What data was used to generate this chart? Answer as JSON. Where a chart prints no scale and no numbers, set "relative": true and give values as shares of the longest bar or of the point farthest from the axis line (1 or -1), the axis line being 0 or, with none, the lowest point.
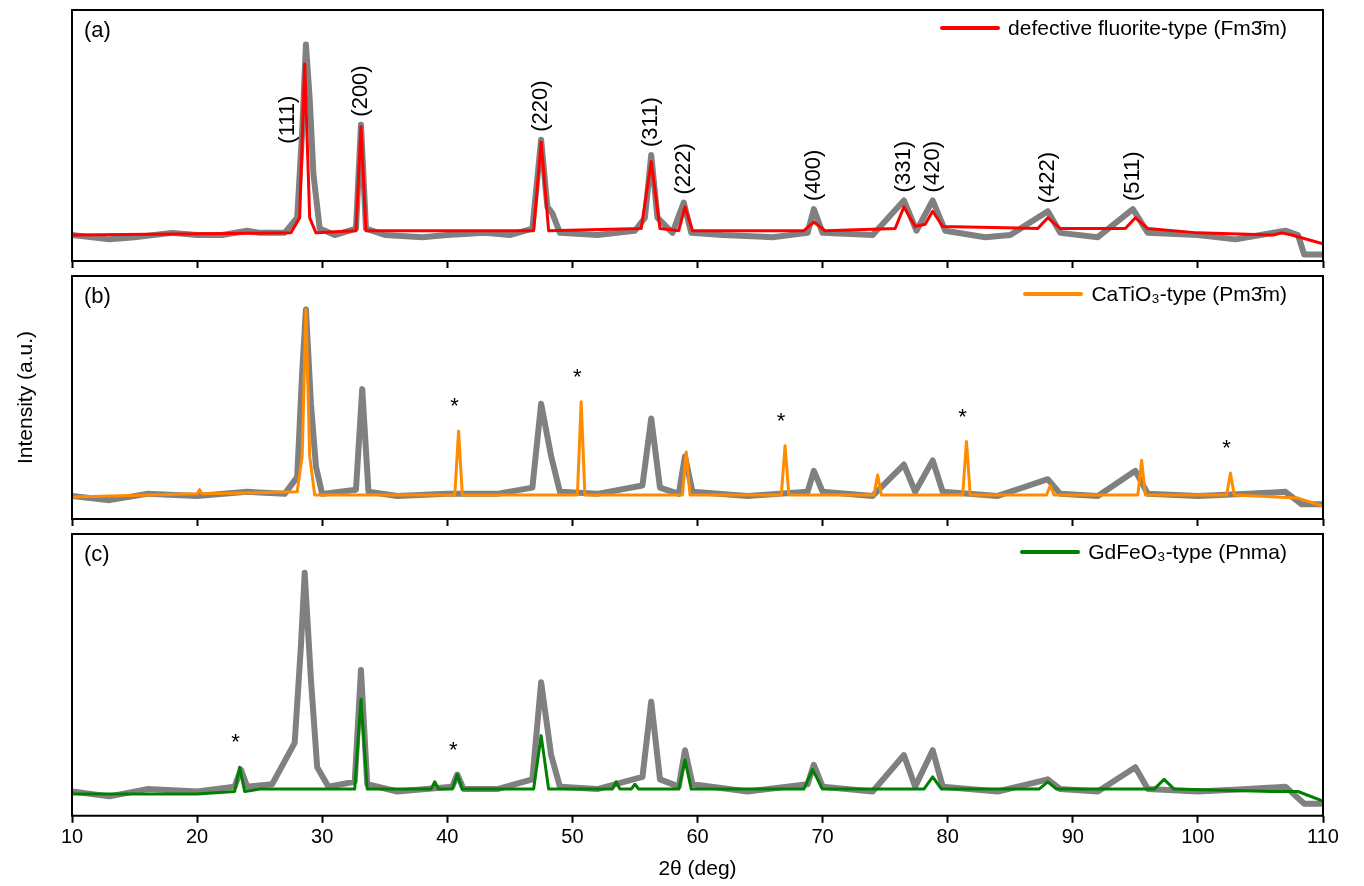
{
  "chart_data": [
    {
      "type": "line",
      "relative": true,
      "xlim": [
        10,
        110
      ],
      "xticks": [
        10,
        20,
        30,
        40,
        50,
        60,
        70,
        80,
        90,
        100,
        110
      ],
      "tick_labels": false,
      "legend": "top right",
      "marker": "none",
      "annotations": [
        "(a)",
        {
          "text": "(111)",
          "x": 28.7,
          "y": 1.0
        },
        {
          "text": "(200)",
          "x": 33.1,
          "y": 0.63
        },
        {
          "text": "(220)",
          "x": 47.5,
          "y": 0.56
        },
        {
          "text": "(311)",
          "x": 56.3,
          "y": 0.49
        },
        {
          "text": "(222)",
          "x": 58.9,
          "y": 0.27
        },
        {
          "text": "(400)",
          "x": 69.3,
          "y": 0.24
        },
        {
          "text": "(331)",
          "x": 76.5,
          "y": 0.28
        },
        {
          "text": "(420)",
          "x": 78.8,
          "y": 0.28
        },
        {
          "text": "(422)",
          "x": 88,
          "y": 0.23
        },
        {
          "text": "(511)",
          "x": 94.8,
          "y": 0.24
        }
      ],
      "series": [
        {
          "color": "#808080",
          "x": [
            10,
            13,
            15,
            18,
            20,
            22,
            24,
            25,
            27,
            28.0,
            28.4,
            28.7,
            29.0,
            29.3,
            29.8,
            31,
            32.7,
            33.1,
            33.5,
            35,
            38,
            40,
            43,
            45,
            46.8,
            47.5,
            48.0,
            48.4,
            49.0,
            52,
            55,
            55.8,
            56.3,
            56.8,
            58,
            58.9,
            59.5,
            62,
            66,
            68.8,
            69.3,
            70,
            74,
            76.5,
            77.5,
            78.8,
            79.8,
            83,
            85,
            88,
            89,
            92,
            94.8,
            96,
            100,
            103,
            105,
            107,
            108,
            108.5,
            110
          ],
          "values": [
            0.12,
            0.1,
            0.11,
            0.13,
            0.12,
            0.12,
            0.14,
            0.13,
            0.13,
            0.2,
            0.6,
            1.0,
            0.75,
            0.4,
            0.15,
            0.12,
            0.15,
            0.63,
            0.15,
            0.12,
            0.11,
            0.12,
            0.13,
            0.12,
            0.15,
            0.56,
            0.25,
            0.22,
            0.13,
            0.12,
            0.14,
            0.2,
            0.49,
            0.2,
            0.13,
            0.27,
            0.13,
            0.12,
            0.11,
            0.13,
            0.24,
            0.13,
            0.12,
            0.28,
            0.14,
            0.28,
            0.14,
            0.11,
            0.12,
            0.23,
            0.13,
            0.11,
            0.24,
            0.13,
            0.12,
            0.1,
            0.12,
            0.14,
            0.12,
            0.03,
            0.03
          ]
        },
        {
          "name": "defective fluorite-type (Fm3̄m)",
          "color": "#ff0000",
          "x": [
            10,
            27.5,
            28.2,
            28.6,
            29.0,
            29.5,
            32.7,
            33.1,
            33.5,
            46.9,
            47.5,
            48.1,
            55.5,
            56.3,
            57.0,
            58.5,
            59.0,
            59.6,
            68.5,
            69.3,
            70.2,
            75.8,
            76.5,
            77.4,
            78.2,
            78.8,
            79.6,
            87.2,
            88.0,
            89,
            94.2,
            95.0,
            96,
            100,
            106,
            106.7,
            107.5,
            110
          ],
          "values": [
            0.12,
            0.13,
            0.2,
            0.91,
            0.2,
            0.13,
            0.14,
            0.62,
            0.14,
            0.14,
            0.55,
            0.14,
            0.15,
            0.46,
            0.15,
            0.14,
            0.25,
            0.14,
            0.14,
            0.18,
            0.14,
            0.15,
            0.25,
            0.16,
            0.17,
            0.23,
            0.16,
            0.15,
            0.2,
            0.15,
            0.15,
            0.2,
            0.15,
            0.13,
            0.12,
            0.13,
            0.12,
            0.08
          ]
        }
      ]
    },
    {
      "type": "line",
      "relative": true,
      "xlim": [
        10,
        110
      ],
      "xticks": [
        10,
        20,
        30,
        40,
        50,
        60,
        70,
        80,
        90,
        100,
        110
      ],
      "tick_labels": false,
      "legend": "top right",
      "marker": "none",
      "ylabel": "Intensity (a.u.)",
      "annotations": [
        "(b)",
        {
          "text": "*",
          "x": 40.9,
          "y": 0.42
        },
        {
          "text": "*",
          "x": 50.7,
          "y": 0.56
        },
        {
          "text": "*",
          "x": 67,
          "y": 0.35
        },
        {
          "text": "*",
          "x": 81.5,
          "y": 0.37
        },
        {
          "text": "*",
          "x": 102.6,
          "y": 0.22
        }
      ],
      "series": [
        {
          "color": "#808080",
          "x": [
            10,
            13,
            16,
            20,
            24,
            27,
            28.0,
            28.4,
            28.7,
            29.1,
            29.5,
            30,
            32.7,
            33.2,
            33.7,
            36,
            40,
            44,
            46.8,
            47.5,
            48.3,
            49,
            52,
            55.6,
            56.3,
            57,
            58.5,
            59.0,
            59.6,
            64,
            68.8,
            69.3,
            70,
            74,
            76.5,
            77.4,
            78.8,
            79.6,
            84,
            88,
            89,
            92,
            95,
            96,
            100,
            104,
            107,
            108.3,
            110
          ],
          "values": [
            0.11,
            0.09,
            0.12,
            0.11,
            0.13,
            0.12,
            0.2,
            0.7,
            1.0,
            0.55,
            0.25,
            0.12,
            0.14,
            0.62,
            0.13,
            0.11,
            0.12,
            0.12,
            0.15,
            0.55,
            0.3,
            0.13,
            0.12,
            0.16,
            0.48,
            0.15,
            0.12,
            0.3,
            0.13,
            0.11,
            0.13,
            0.23,
            0.13,
            0.11,
            0.26,
            0.13,
            0.28,
            0.13,
            0.11,
            0.19,
            0.12,
            0.11,
            0.23,
            0.12,
            0.11,
            0.12,
            0.13,
            0.07,
            0.07
          ]
        },
        {
          "name": "CaTiO₃-type (Pm3̄m)",
          "color": "#ff8c00",
          "x": [
            10,
            20,
            20.2,
            20.4,
            28,
            28.4,
            28.7,
            29.0,
            29.4,
            40.6,
            40.9,
            41.2,
            50.4,
            50.7,
            51.0,
            58.8,
            59.1,
            59.4,
            66.7,
            67,
            67.3,
            74.1,
            74.4,
            74.7,
            81.2,
            81.5,
            81.8,
            87.9,
            88.2,
            88.5,
            95.2,
            95.5,
            95.8,
            102.3,
            102.6,
            102.9,
            108,
            110
          ],
          "values": [
            0.105,
            0.12,
            0.14,
            0.12,
            0.13,
            0.3,
            1.0,
            0.3,
            0.115,
            0.115,
            0.42,
            0.115,
            0.115,
            0.56,
            0.115,
            0.115,
            0.32,
            0.115,
            0.115,
            0.35,
            0.115,
            0.115,
            0.21,
            0.115,
            0.115,
            0.37,
            0.115,
            0.115,
            0.16,
            0.115,
            0.115,
            0.28,
            0.115,
            0.115,
            0.22,
            0.115,
            0.1,
            0.06
          ]
        }
      ]
    },
    {
      "type": "line",
      "relative": true,
      "xlim": [
        10,
        110
      ],
      "xticks": [
        10,
        20,
        30,
        40,
        50,
        60,
        70,
        80,
        90,
        100,
        110
      ],
      "tick_labels": "x",
      "legend": "top right",
      "marker": "none",
      "xlabel": "2θ (deg)",
      "annotations": [
        "(c)",
        {
          "text": "*",
          "x": 23.4,
          "y": 0.2
        },
        {
          "text": "*",
          "x": 40.8,
          "y": 0.17
        }
      ],
      "series": [
        {
          "color": "#808080",
          "x": [
            10,
            13,
            16,
            20,
            23,
            23.5,
            24,
            26,
            27.8,
            28.3,
            28.6,
            29.1,
            29.6,
            30.5,
            32.6,
            33.1,
            33.6,
            36,
            40.4,
            40.8,
            41.3,
            44,
            46.8,
            47.5,
            48.3,
            49,
            52,
            55.6,
            56.3,
            57,
            58.5,
            59.0,
            59.6,
            64,
            68.8,
            69.3,
            70,
            74,
            76.5,
            77.4,
            78.8,
            79.6,
            84,
            88,
            89,
            92,
            95,
            96,
            100,
            104,
            107,
            108.5,
            110
          ],
          "values": [
            0.1,
            0.08,
            0.11,
            0.1,
            0.12,
            0.19,
            0.12,
            0.13,
            0.3,
            0.7,
            1.0,
            0.56,
            0.2,
            0.12,
            0.14,
            0.6,
            0.13,
            0.1,
            0.12,
            0.17,
            0.11,
            0.11,
            0.15,
            0.55,
            0.25,
            0.12,
            0.11,
            0.16,
            0.47,
            0.15,
            0.12,
            0.27,
            0.13,
            0.1,
            0.13,
            0.21,
            0.12,
            0.1,
            0.25,
            0.12,
            0.27,
            0.12,
            0.1,
            0.15,
            0.11,
            0.1,
            0.2,
            0.11,
            0.1,
            0.11,
            0.12,
            0.05,
            0.05
          ]
        },
        {
          "name": "GdFeO₃-type (Pnma)",
          "color": "#008000",
          "x": [
            10,
            20,
            23.0,
            23.4,
            23.8,
            25,
            32.6,
            33.1,
            33.6,
            38.7,
            39.0,
            39.3,
            40.4,
            40.8,
            41.2,
            46.9,
            47.5,
            48.1,
            53.2,
            53.5,
            53.8,
            54.7,
            55,
            55.3,
            58.5,
            59.0,
            59.5,
            68.5,
            69.2,
            70,
            78.1,
            78.8,
            79.5,
            87.3,
            88,
            88.7,
            96.5,
            97.3,
            98.1,
            106,
            108,
            110
          ],
          "values": [
            0.09,
            0.09,
            0.1,
            0.2,
            0.1,
            0.11,
            0.11,
            0.48,
            0.11,
            0.11,
            0.14,
            0.11,
            0.11,
            0.17,
            0.11,
            0.11,
            0.33,
            0.11,
            0.11,
            0.14,
            0.11,
            0.11,
            0.13,
            0.11,
            0.11,
            0.23,
            0.11,
            0.11,
            0.19,
            0.11,
            0.11,
            0.16,
            0.11,
            0.11,
            0.14,
            0.11,
            0.11,
            0.15,
            0.11,
            0.1,
            0.1,
            0.06
          ]
        }
      ]
    }
  ]
}
